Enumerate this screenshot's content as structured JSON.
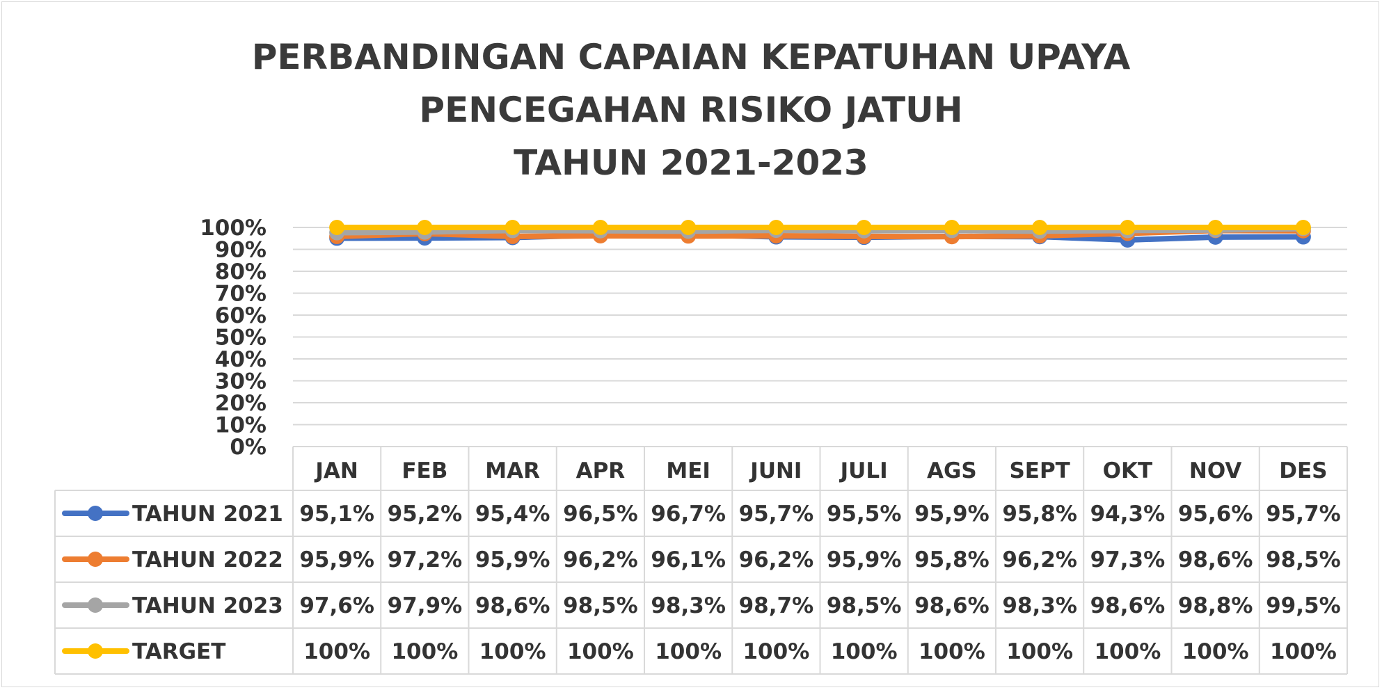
{
  "chart_data": {
    "type": "line",
    "title": [
      "PERBANDINGAN CAPAIAN KEPATUHAN UPAYA",
      "PENCEGAHAN RISIKO JATUH",
      "TAHUN 2021-2023"
    ],
    "categories": [
      "JAN",
      "FEB",
      "MAR",
      "APR",
      "MEI",
      "JUNI",
      "JULI",
      "AGS",
      "SEPT",
      "OKT",
      "NOV",
      "DES"
    ],
    "ylim": [
      0,
      100
    ],
    "yticks": [
      "0%",
      "10%",
      "20%",
      "30%",
      "40%",
      "50%",
      "60%",
      "70%",
      "80%",
      "90%",
      "100%"
    ],
    "grid": true,
    "legend": "data-table",
    "series": [
      {
        "name": "TAHUN 2021",
        "color": "#4472c4",
        "values": [
          95.1,
          95.2,
          95.4,
          96.5,
          96.7,
          95.7,
          95.5,
          95.9,
          95.8,
          94.3,
          95.6,
          95.7
        ],
        "labels": [
          "95,1%",
          "95,2%",
          "95,4%",
          "96,5%",
          "96,7%",
          "95,7%",
          "95,5%",
          "95,9%",
          "95,8%",
          "94,3%",
          "95,6%",
          "95,7%"
        ]
      },
      {
        "name": "TAHUN 2022",
        "color": "#ed7d31",
        "values": [
          95.9,
          97.2,
          95.9,
          96.2,
          96.1,
          96.2,
          95.9,
          95.8,
          96.2,
          97.3,
          98.6,
          98.5
        ],
        "labels": [
          "95,9%",
          "97,2%",
          "95,9%",
          "96,2%",
          "96,1%",
          "96,2%",
          "95,9%",
          "95,8%",
          "96,2%",
          "97,3%",
          "98,6%",
          "98,5%"
        ]
      },
      {
        "name": "TAHUN 2023",
        "color": "#a5a5a5",
        "values": [
          97.6,
          97.9,
          98.6,
          98.5,
          98.3,
          98.7,
          98.5,
          98.6,
          98.3,
          98.6,
          98.8,
          99.5
        ],
        "labels": [
          "97,6%",
          "97,9%",
          "98,6%",
          "98,5%",
          "98,3%",
          "98,7%",
          "98,5%",
          "98,6%",
          "98,3%",
          "98,6%",
          "98,8%",
          "99,5%"
        ]
      },
      {
        "name": "TARGET",
        "color": "#ffc000",
        "values": [
          100,
          100,
          100,
          100,
          100,
          100,
          100,
          100,
          100,
          100,
          100,
          100
        ],
        "labels": [
          "100%",
          "100%",
          "100%",
          "100%",
          "100%",
          "100%",
          "100%",
          "100%",
          "100%",
          "100%",
          "100%",
          "100%"
        ]
      }
    ]
  }
}
